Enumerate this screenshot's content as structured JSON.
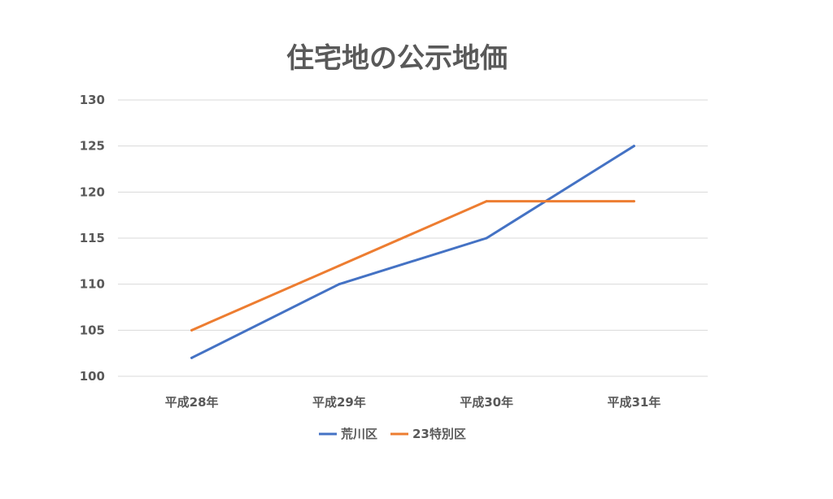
{
  "chart_data": {
    "type": "line",
    "title": "住宅地の公示地価",
    "xlabel": "",
    "ylabel": "",
    "categories": [
      "平成28年",
      "平成29年",
      "平成30年",
      "平成31年"
    ],
    "ylim": [
      100,
      130
    ],
    "yticks": [
      100,
      105,
      110,
      115,
      120,
      125,
      130
    ],
    "grid": true,
    "legend_position": "bottom",
    "series": [
      {
        "name": "荒川区",
        "color": "#4472c4",
        "values": [
          102,
          110,
          115,
          125
        ]
      },
      {
        "name": "23特別区",
        "color": "#ed7d31",
        "values": [
          105,
          112,
          119,
          119
        ]
      }
    ]
  }
}
